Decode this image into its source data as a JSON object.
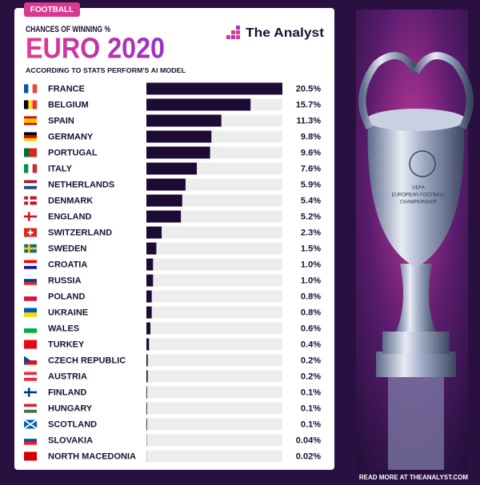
{
  "chart_data": {
    "type": "bar",
    "tag": "FOOTBALL",
    "kicker": "CHANCES OF WINNING %",
    "title": "EURO 2020",
    "subtitle": "ACCORDING TO STATS PERFORM'S AI MODEL",
    "brand": "The Analyst",
    "footer": "READ MORE AT THEANALYST.COM",
    "trophy_engraving": [
      "UEFA",
      "EUROPEAN FOOTBALL",
      "CHAMPIONSHIP"
    ],
    "categories": [
      "FRANCE",
      "BELGIUM",
      "SPAIN",
      "GERMANY",
      "PORTUGAL",
      "ITALY",
      "NETHERLANDS",
      "DENMARK",
      "ENGLAND",
      "SWITZERLAND",
      "SWEDEN",
      "CROATIA",
      "RUSSIA",
      "POLAND",
      "UKRAINE",
      "WALES",
      "TURKEY",
      "CZECH REPUBLIC",
      "AUSTRIA",
      "FINLAND",
      "HUNGARY",
      "SCOTLAND",
      "SLOVAKIA",
      "NORTH MACEDONIA"
    ],
    "values": [
      20.5,
      15.7,
      11.3,
      9.8,
      9.6,
      7.6,
      5.9,
      5.4,
      5.2,
      2.3,
      1.5,
      1.0,
      1.0,
      0.8,
      0.8,
      0.6,
      0.4,
      0.2,
      0.2,
      0.1,
      0.1,
      0.1,
      0.04,
      0.02
    ],
    "value_labels": [
      "20.5%",
      "15.7%",
      "11.3%",
      "9.8%",
      "9.6%",
      "7.6%",
      "5.9%",
      "5.4%",
      "5.2%",
      "2.3%",
      "1.5%",
      "1.0%",
      "1.0%",
      "0.8%",
      "0.8%",
      "0.6%",
      "0.4%",
      "0.2%",
      "0.2%",
      "0.1%",
      "0.1%",
      "0.1%",
      "0.04%",
      "0.02%"
    ],
    "color": "#1e0b35"
  }
}
